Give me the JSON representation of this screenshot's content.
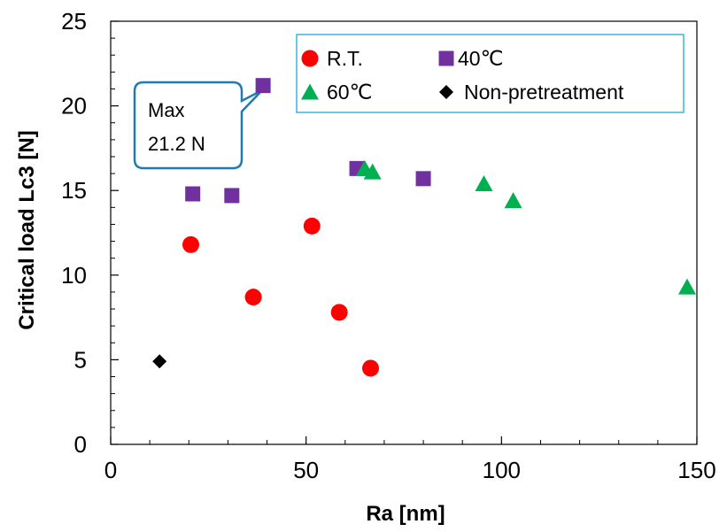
{
  "chart_data": {
    "type": "scatter",
    "xlabel": "Ra [nm]",
    "ylabel": "Critical load Lc3 [N]",
    "xlim": [
      0,
      150
    ],
    "ylim": [
      0,
      25
    ],
    "x_ticks": [
      "0",
      "50",
      "100",
      "150"
    ],
    "y_ticks": [
      "0",
      "5",
      "10",
      "15",
      "20",
      "25"
    ],
    "grid": false,
    "legend_position": "top-right",
    "series": [
      {
        "name": "R.T.",
        "marker": "circle",
        "color": "#ff0000",
        "points": [
          [
            20.5,
            11.8
          ],
          [
            36.5,
            8.7
          ],
          [
            51.5,
            12.9
          ],
          [
            58.5,
            7.8
          ],
          [
            66.5,
            4.5
          ]
        ]
      },
      {
        "name": "40℃",
        "marker": "square",
        "color": "#7030a0",
        "points": [
          [
            21,
            14.8
          ],
          [
            31,
            14.7
          ],
          [
            39,
            21.2
          ],
          [
            63,
            16.3
          ],
          [
            80,
            15.7
          ]
        ]
      },
      {
        "name": "60℃",
        "marker": "triangle",
        "color": "#00b050",
        "points": [
          [
            65,
            16.3
          ],
          [
            67,
            16.1
          ],
          [
            95.5,
            15.4
          ],
          [
            103,
            14.4
          ],
          [
            147.5,
            9.3
          ]
        ]
      },
      {
        "name": "Non-pretreatment",
        "marker": "diamond",
        "color": "#000000",
        "points": [
          [
            12.5,
            4.9
          ]
        ]
      }
    ],
    "annotation": {
      "line1": "Max",
      "line2": "21.2 N"
    }
  }
}
